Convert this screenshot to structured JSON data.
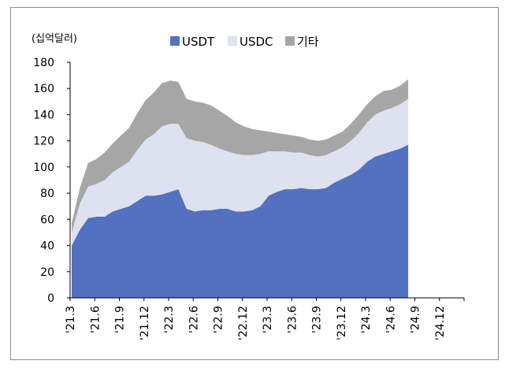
{
  "chart_data": {
    "type": "area",
    "unit_label": "(십억달러)",
    "stacked": true,
    "legend_position": "top",
    "ylim": [
      0,
      180
    ],
    "y_ticks": [
      "0",
      "20",
      "40",
      "60",
      "80",
      "100",
      "120",
      "140",
      "160",
      "180"
    ],
    "x_ticks": [
      "'21.3",
      "'21.6",
      "'21.9",
      "'21.12",
      "'22.3",
      "'22.6",
      "'22.9",
      "'22.12",
      "'23.3",
      "'23.6",
      "'23.9",
      "'23.12",
      "'24.3",
      "'24.6",
      "'24.9",
      "'24.12"
    ],
    "x": [
      "2021-03",
      "2021-04",
      "2021-05",
      "2021-06",
      "2021-07",
      "2021-08",
      "2021-09",
      "2021-10",
      "2021-11",
      "2021-12",
      "2022-01",
      "2022-02",
      "2022-03",
      "2022-04",
      "2022-05",
      "2022-06",
      "2022-07",
      "2022-08",
      "2022-09",
      "2022-10",
      "2022-11",
      "2022-12",
      "2023-01",
      "2023-02",
      "2023-03",
      "2023-04",
      "2023-05",
      "2023-06",
      "2023-07",
      "2023-08",
      "2023-09",
      "2023-10",
      "2023-11",
      "2023-12",
      "2024-01",
      "2024-02",
      "2024-03",
      "2024-04",
      "2024-05",
      "2024-06",
      "2024-07",
      "2024-08"
    ],
    "series": [
      {
        "name": "USDT",
        "color": "#5470c1",
        "values": [
          40,
          52,
          61,
          62,
          62,
          66,
          68,
          70,
          74,
          78,
          78,
          79,
          81,
          83,
          68,
          66,
          67,
          67,
          68,
          68,
          66,
          66,
          67,
          70,
          78,
          81,
          83,
          83,
          84,
          83,
          83,
          84,
          88,
          91,
          94,
          98,
          104,
          108,
          110,
          112,
          114,
          117
        ]
      },
      {
        "name": "USDC",
        "color": "#dde1f0",
        "values": [
          10,
          20,
          24,
          25,
          28,
          30,
          32,
          34,
          39,
          43,
          47,
          52,
          52,
          50,
          54,
          54,
          52,
          50,
          46,
          44,
          44,
          43,
          42,
          40,
          34,
          31,
          29,
          28,
          27,
          26,
          25,
          25,
          24,
          24,
          26,
          28,
          30,
          32,
          33,
          33,
          34,
          35
        ]
      },
      {
        "name": "기타",
        "color": "#a6a6a6",
        "values": [
          7,
          12,
          18,
          19,
          21,
          22,
          24,
          26,
          28,
          30,
          32,
          33,
          33,
          32,
          30,
          30,
          30,
          30,
          29,
          27,
          24,
          22,
          20,
          18,
          15,
          14,
          13,
          13,
          12,
          12,
          12,
          12,
          12,
          12,
          13,
          14,
          14,
          14,
          15,
          14,
          14,
          15
        ]
      }
    ]
  }
}
